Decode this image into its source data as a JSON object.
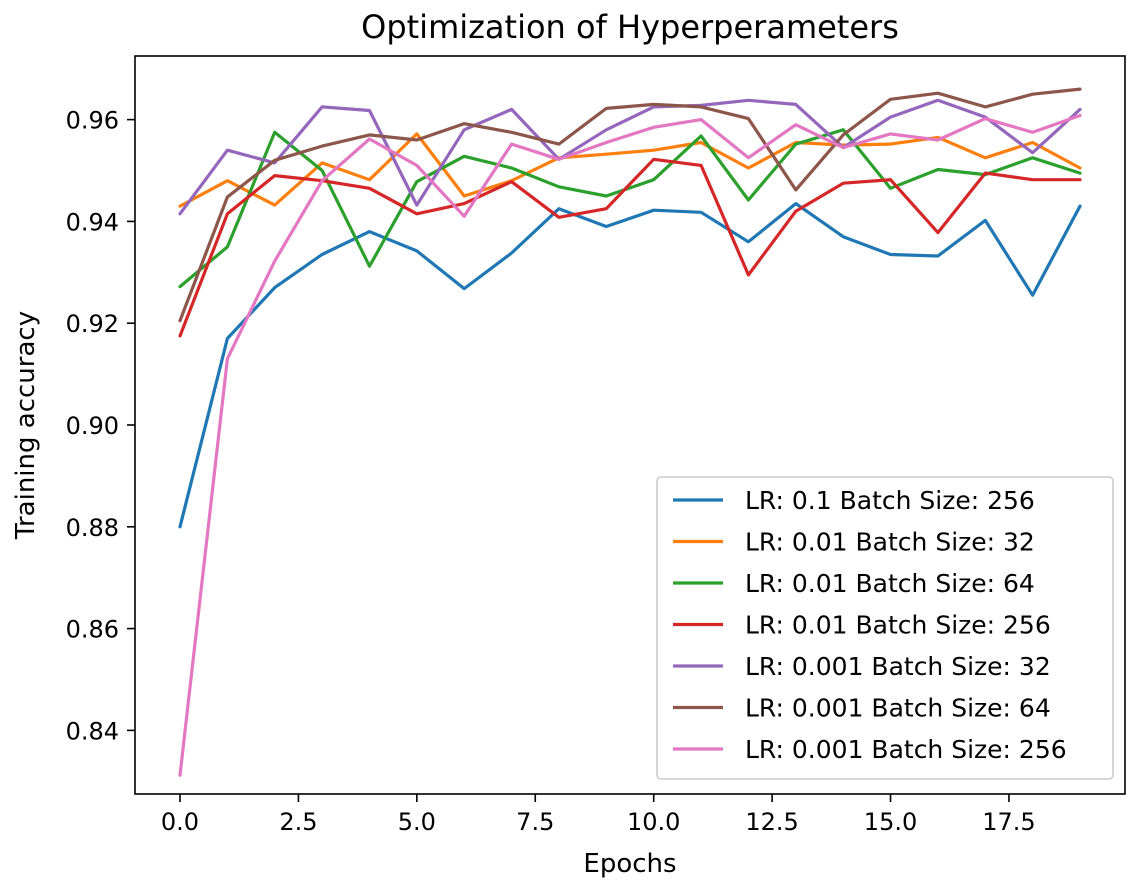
{
  "chart_data": {
    "type": "line",
    "title": "Optimization of Hyperperameters",
    "xlabel": "Epochs",
    "ylabel": "Training accuracy",
    "xlim": [
      -0.95,
      19.95
    ],
    "ylim": [
      0.8275,
      0.9725
    ],
    "xticks": [
      0.0,
      2.5,
      5.0,
      7.5,
      10.0,
      12.5,
      15.0,
      17.5
    ],
    "xtick_labels": [
      "0.0",
      "2.5",
      "5.0",
      "7.5",
      "10.0",
      "12.5",
      "15.0",
      "17.5"
    ],
    "yticks": [
      0.84,
      0.86,
      0.88,
      0.9,
      0.92,
      0.94,
      0.96
    ],
    "ytick_labels": [
      "0.84",
      "0.86",
      "0.88",
      "0.90",
      "0.92",
      "0.94",
      "0.96"
    ],
    "grid": false,
    "legend_position": "lower-right",
    "x": [
      0,
      1,
      2,
      3,
      4,
      5,
      6,
      7,
      8,
      9,
      10,
      11,
      12,
      13,
      14,
      15,
      16,
      17,
      18,
      19
    ],
    "series": [
      {
        "name": "LR: 0.1 Batch Size: 256",
        "color": "#1f77b4",
        "values": [
          0.88,
          0.917,
          0.927,
          0.9335,
          0.938,
          0.9342,
          0.9268,
          0.9338,
          0.9425,
          0.939,
          0.9422,
          0.9418,
          0.936,
          0.9435,
          0.937,
          0.9335,
          0.9332,
          0.9402,
          0.9255,
          0.943
        ]
      },
      {
        "name": "LR: 0.01 Batch Size: 32",
        "color": "#ff7f0e",
        "values": [
          0.943,
          0.948,
          0.9432,
          0.9515,
          0.9482,
          0.9572,
          0.945,
          0.948,
          0.9525,
          0.9532,
          0.954,
          0.9555,
          0.9505,
          0.9555,
          0.955,
          0.9552,
          0.9565,
          0.9525,
          0.9555,
          0.9505
        ]
      },
      {
        "name": "LR: 0.01 Batch Size: 64",
        "color": "#2ca02c",
        "values": [
          0.9272,
          0.935,
          0.9575,
          0.95,
          0.9312,
          0.9478,
          0.9528,
          0.9505,
          0.9468,
          0.945,
          0.9482,
          0.9568,
          0.9442,
          0.9552,
          0.958,
          0.9465,
          0.9502,
          0.9492,
          0.9525,
          0.9495
        ]
      },
      {
        "name": "LR: 0.01 Batch Size: 256",
        "color": "#d62728",
        "values": [
          0.9175,
          0.9415,
          0.949,
          0.948,
          0.9465,
          0.9415,
          0.9435,
          0.9478,
          0.9408,
          0.9425,
          0.9522,
          0.951,
          0.9295,
          0.942,
          0.9475,
          0.9482,
          0.9378,
          0.9495,
          0.9482,
          0.9482
        ]
      },
      {
        "name": "LR: 0.001 Batch Size: 32",
        "color": "#9467bd",
        "values": [
          0.9415,
          0.954,
          0.9515,
          0.9625,
          0.9618,
          0.9432,
          0.958,
          0.962,
          0.9522,
          0.958,
          0.9625,
          0.9628,
          0.9638,
          0.963,
          0.9545,
          0.9605,
          0.9638,
          0.9605,
          0.9535,
          0.962
        ]
      },
      {
        "name": "LR: 0.001 Batch Size: 64",
        "color": "#8c564b",
        "values": [
          0.9205,
          0.9448,
          0.952,
          0.9548,
          0.957,
          0.956,
          0.9592,
          0.9575,
          0.9552,
          0.9622,
          0.963,
          0.9625,
          0.9602,
          0.9462,
          0.957,
          0.964,
          0.9652,
          0.9625,
          0.965,
          0.966
        ]
      },
      {
        "name": "LR: 0.001 Batch Size: 256",
        "color": "#e377c2",
        "values": [
          0.8312,
          0.913,
          0.9322,
          0.948,
          0.9562,
          0.951,
          0.941,
          0.9552,
          0.9522,
          0.9555,
          0.9585,
          0.96,
          0.9525,
          0.959,
          0.9545,
          0.9572,
          0.956,
          0.9602,
          0.9575,
          0.9608
        ]
      }
    ]
  }
}
